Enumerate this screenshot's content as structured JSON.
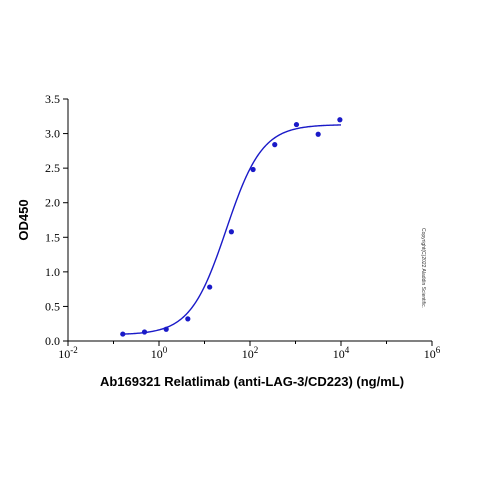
{
  "chart_data": {
    "type": "scatter",
    "xlabel": "Ab169321 Relatlimab (anti-LAG-3/CD223) (ng/mL)",
    "ylabel": "OD450",
    "x_scale": "log10",
    "xlim": [
      0.01,
      1000000
    ],
    "ylim": [
      0,
      3.5
    ],
    "x_ticks": [
      {
        "value": 0.01,
        "base": "10",
        "exp": "-2"
      },
      {
        "value": 1,
        "base": "10",
        "exp": "0"
      },
      {
        "value": 100,
        "base": "10",
        "exp": "2"
      },
      {
        "value": 10000,
        "base": "10",
        "exp": "4"
      },
      {
        "value": 1000000,
        "base": "10",
        "exp": "6"
      }
    ],
    "y_ticks": [
      "0.0",
      "0.5",
      "1.0",
      "1.5",
      "2.0",
      "2.5",
      "3.0",
      "3.5"
    ],
    "series": [
      {
        "x": [
          0.16,
          0.48,
          1.44,
          4.3,
          13,
          39,
          117,
          350,
          1050,
          3150,
          9450
        ],
        "y": [
          0.1,
          0.13,
          0.17,
          0.32,
          0.78,
          1.58,
          2.48,
          2.84,
          3.13,
          2.99,
          3.2
        ],
        "color": "#1a1ac8"
      }
    ],
    "fit": {
      "model": "4PL",
      "bottom": 0.09,
      "top": 3.13,
      "ec50": 30,
      "hill": 1.1,
      "x_range": [
        0.16,
        10000
      ],
      "color": "#1a1ac8"
    },
    "annotation": "Copyright(C)2022 Aladdin Scientific."
  }
}
